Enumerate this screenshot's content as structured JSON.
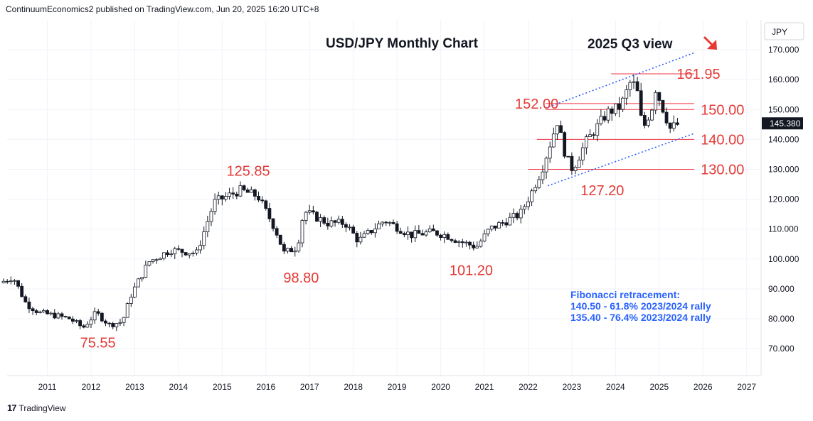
{
  "header": {
    "attribution": "ContinuumEconomics2 published on TradingView.com, Jun 20, 2025 16:20 UTC+8"
  },
  "footer": {
    "brand": "TradingView",
    "logo_text": "17"
  },
  "colors": {
    "up": "#089981",
    "down": "#f23645",
    "annotation": "#e53935",
    "fib": "#2962ff",
    "channel": "#2962ff",
    "price_badge": "#131722"
  },
  "chart_data": {
    "type": "candlestick",
    "symbol": "USD/JPY",
    "title": "USD/JPY Monthly Chart",
    "subtitle": "2025 Q3 view",
    "currency": "JPY",
    "last_price": "145.380",
    "y_ticks": [
      "170.000",
      "160.000",
      "150.000",
      "140.000",
      "130.000",
      "120.000",
      "110.000",
      "100.000",
      "90.000",
      "80.000",
      "70.000"
    ],
    "ylim": [
      61,
      180
    ],
    "x_ticks": [
      "2011",
      "2012",
      "2013",
      "2014",
      "2015",
      "2016",
      "2017",
      "2018",
      "2019",
      "2020",
      "2021",
      "2022",
      "2023",
      "2024",
      "2025",
      "2026",
      "2027"
    ],
    "xlim": [
      2010.08,
      2027.33
    ],
    "ohlc_anchors": [
      [
        2010.0,
        92
      ],
      [
        2010.3,
        94
      ],
      [
        2010.6,
        85
      ],
      [
        2010.9,
        82
      ],
      [
        2011.3,
        81
      ],
      [
        2011.6,
        80
      ],
      [
        2011.9,
        77
      ],
      [
        2012.2,
        82
      ],
      [
        2012.5,
        78
      ],
      [
        2012.8,
        79
      ],
      [
        2013.0,
        88
      ],
      [
        2013.4,
        99
      ],
      [
        2013.9,
        103
      ],
      [
        2014.5,
        102
      ],
      [
        2014.9,
        119
      ],
      [
        2015.5,
        123
      ],
      [
        2015.9,
        121
      ],
      [
        2016.3,
        110
      ],
      [
        2016.5,
        102
      ],
      [
        2016.8,
        104
      ],
      [
        2016.95,
        116
      ],
      [
        2017.5,
        112
      ],
      [
        2017.9,
        112
      ],
      [
        2018.2,
        106
      ],
      [
        2018.8,
        113
      ],
      [
        2019.4,
        108
      ],
      [
        2019.9,
        109
      ],
      [
        2020.2,
        108
      ],
      [
        2020.5,
        106
      ],
      [
        2020.9,
        104
      ],
      [
        2021.2,
        110
      ],
      [
        2021.9,
        115
      ],
      [
        2022.15,
        122
      ],
      [
        2022.4,
        130
      ],
      [
        2022.75,
        146
      ],
      [
        2022.95,
        134
      ],
      [
        2023.1,
        130
      ],
      [
        2023.4,
        139
      ],
      [
        2023.9,
        149
      ],
      [
        2024.2,
        151
      ],
      [
        2024.45,
        160
      ],
      [
        2024.6,
        155
      ],
      [
        2024.7,
        143
      ],
      [
        2024.95,
        152
      ],
      [
        2025.0,
        157
      ],
      [
        2025.2,
        149
      ],
      [
        2025.35,
        143
      ],
      [
        2025.45,
        145
      ]
    ],
    "horizontal_levels": [
      {
        "value": 161.95,
        "x_start": 2023.9
      },
      {
        "value": 152.0,
        "x_start": 2022.4
      },
      {
        "value": 150.0,
        "x_start": 2022.4
      },
      {
        "value": 140.0,
        "x_start": 2022.2
      },
      {
        "value": 130.0,
        "x_start": 2022.0
      }
    ],
    "channel": {
      "upper": [
        [
          2022.4,
          150.5
        ],
        [
          2025.8,
          169
        ]
      ],
      "lower": [
        [
          2022.45,
          124.5
        ],
        [
          2025.8,
          142
        ]
      ]
    },
    "annotations": [
      {
        "text": "125.85",
        "x": 2015.1,
        "y": 129.5
      },
      {
        "text": "98.80",
        "x": 2016.4,
        "y": 93.8
      },
      {
        "text": "75.55",
        "x": 2011.75,
        "y": 72.0
      },
      {
        "text": "101.20",
        "x": 2020.2,
        "y": 96.3
      },
      {
        "text": "152.00",
        "x": 2021.7,
        "y": 152.0
      },
      {
        "text": "127.20",
        "x": 2023.2,
        "y": 123.0
      },
      {
        "text": "161.95",
        "x": 2025.4,
        "y": 162.0
      },
      {
        "text": "150.00",
        "x": 2025.95,
        "y": 150.0
      },
      {
        "text": "140.00",
        "x": 2025.95,
        "y": 140.0
      },
      {
        "text": "130.00",
        "x": 2025.95,
        "y": 130.0
      }
    ],
    "fibonacci": {
      "title": "Fibonacci retracement:",
      "lines": [
        "140.50 - 61.8% 2023/2024 rally",
        "135.40 - 76.4% 2023/2024 rally"
      ]
    },
    "grid": true
  }
}
